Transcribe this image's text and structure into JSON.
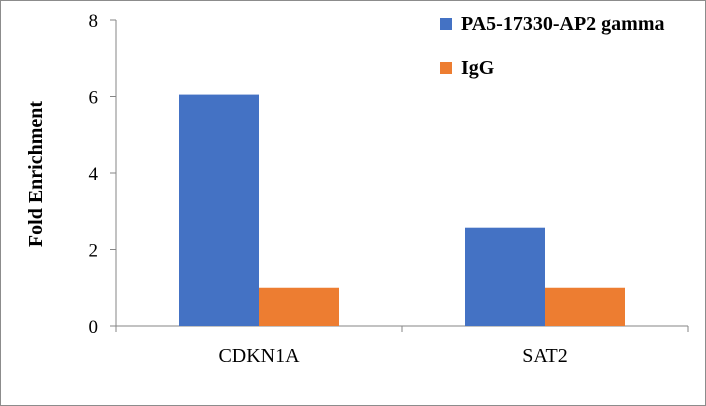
{
  "chart_data": {
    "type": "bar",
    "categories": [
      "CDKN1A",
      "SAT2"
    ],
    "series": [
      {
        "name": "PA5-17330-AP2 gamma",
        "values": [
          6.05,
          2.57
        ],
        "color": "#4472c4"
      },
      {
        "name": "IgG",
        "values": [
          1.0,
          1.0
        ],
        "color": "#ed7d31"
      }
    ],
    "ylabel": "Fold Enrichment",
    "xlabel": "",
    "ylim": [
      0,
      8
    ],
    "yticks": [
      0,
      2,
      4,
      6,
      8
    ],
    "grid": false,
    "legend_position": "top-right"
  }
}
